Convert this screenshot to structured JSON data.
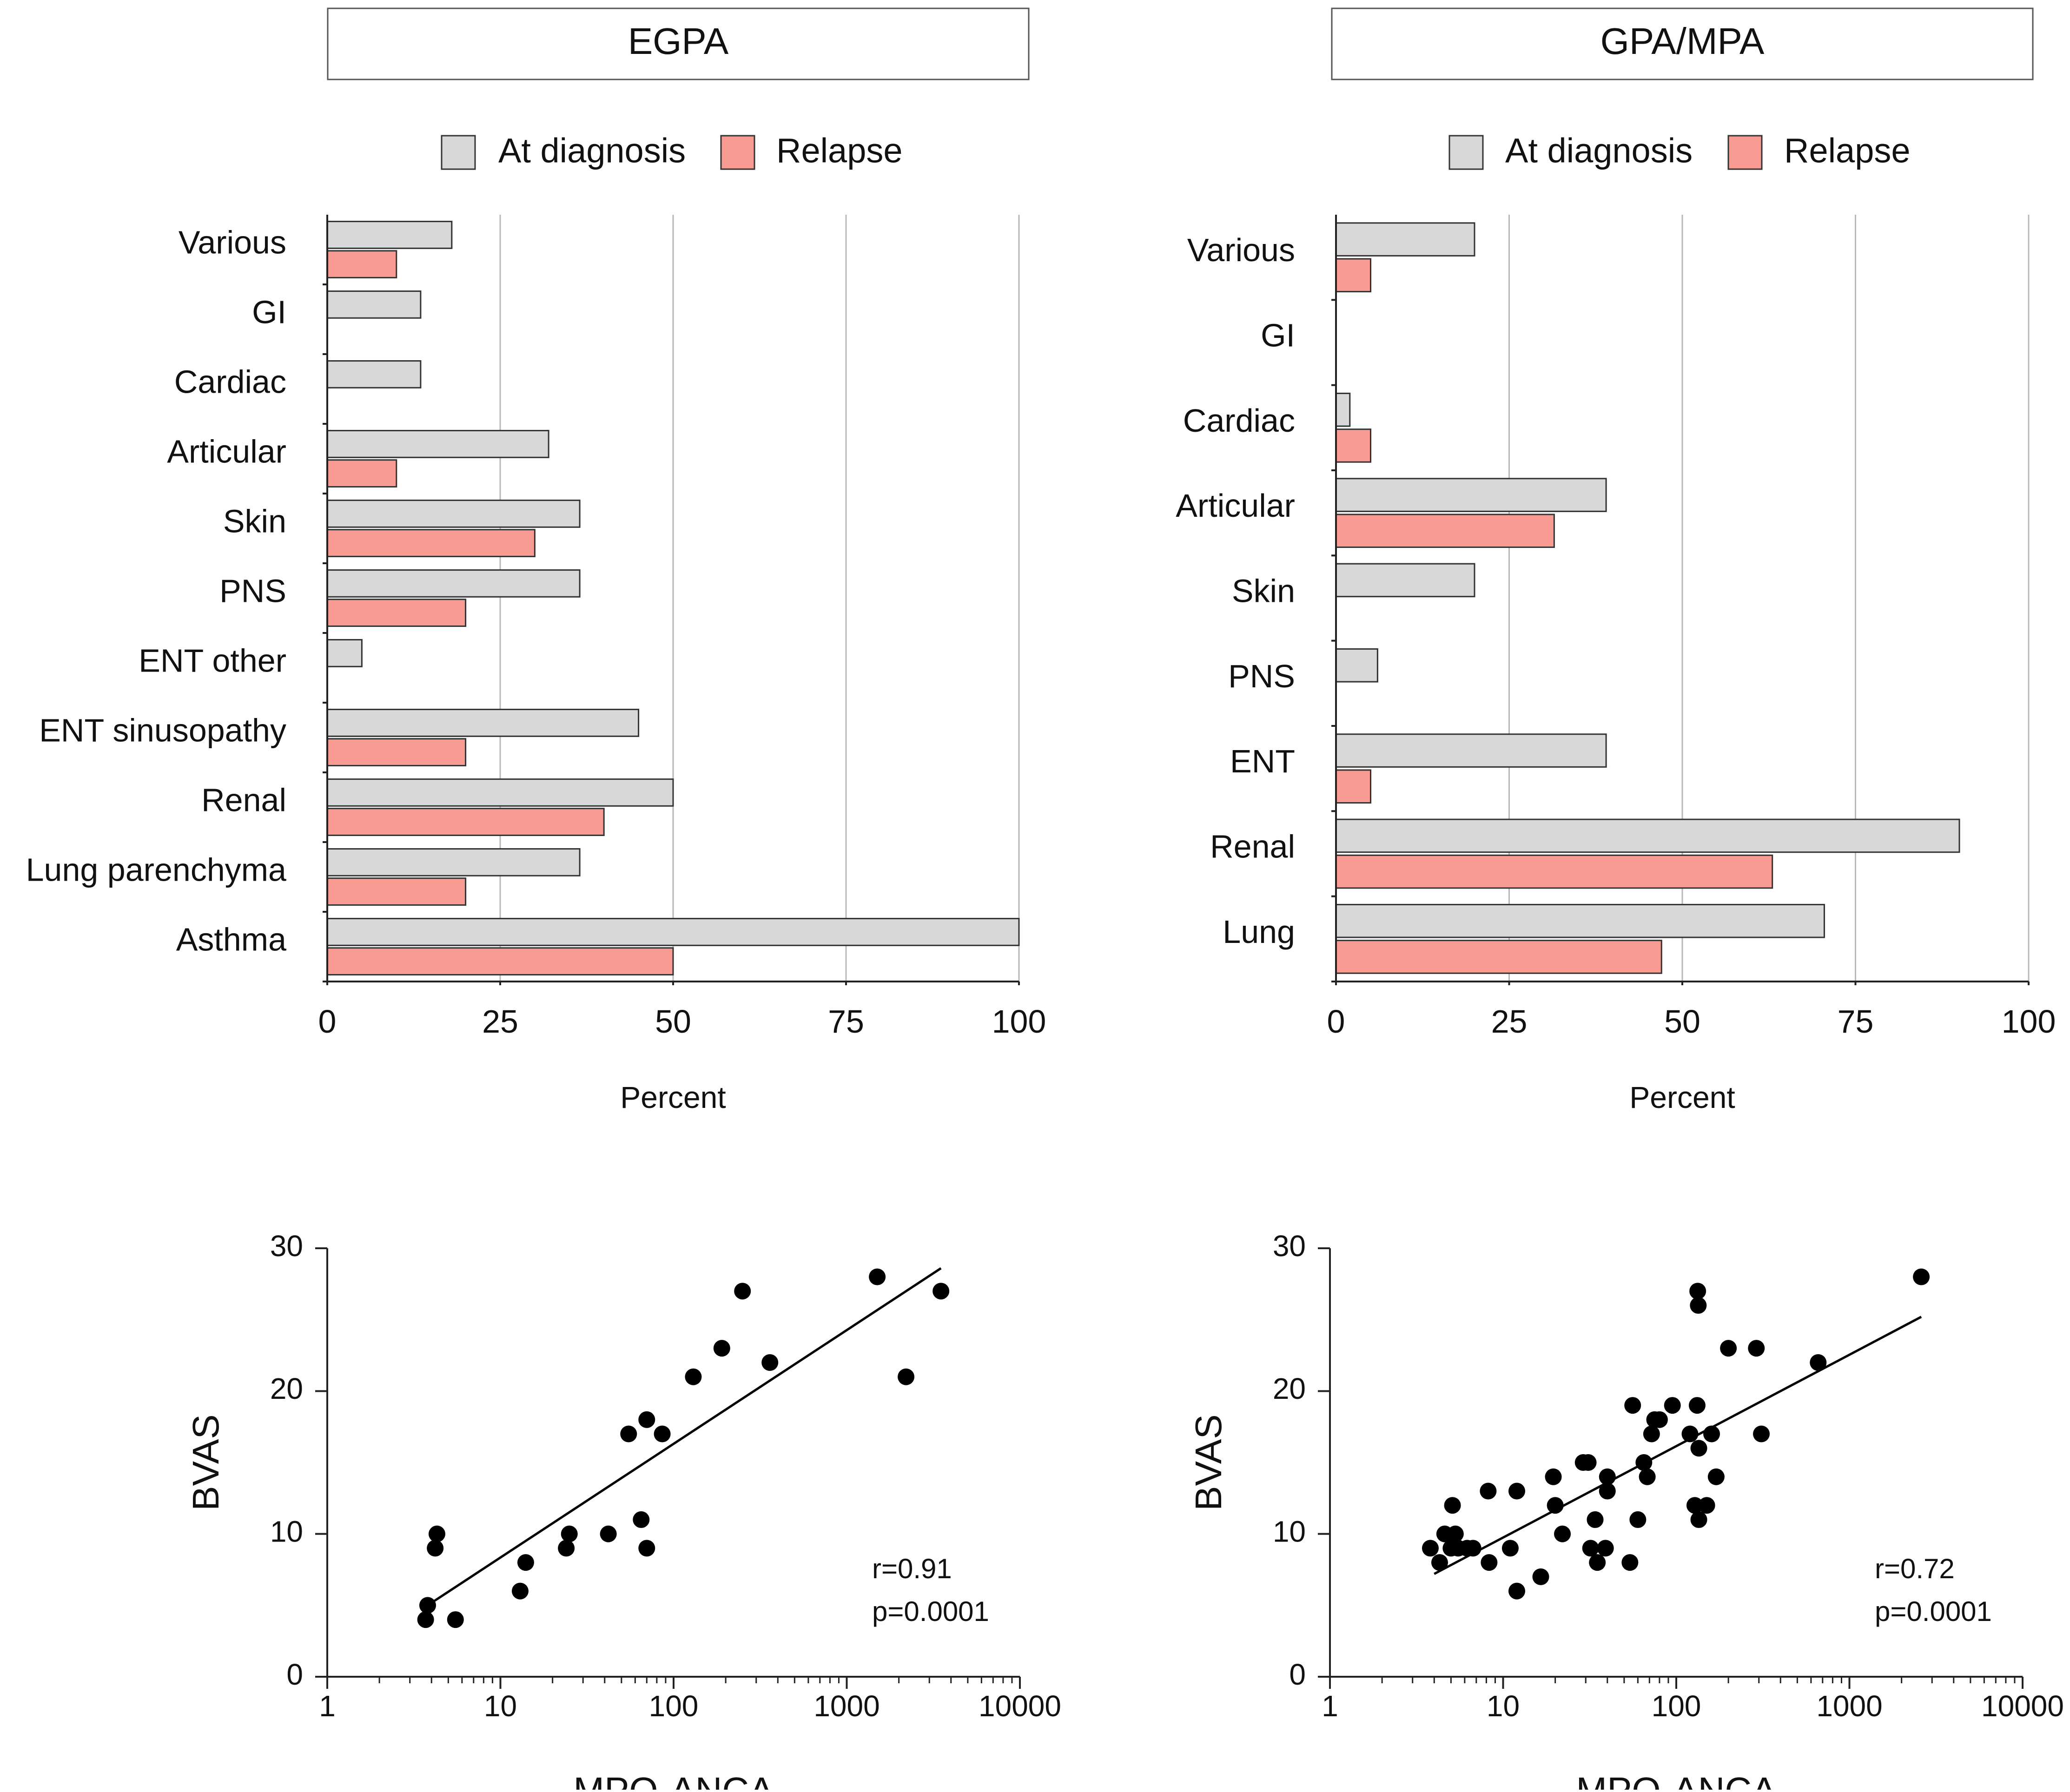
{
  "colors": {
    "at_diagnosis": "#d8d8d8",
    "relapse": "#f89b92",
    "grid": "#b8b8b8",
    "axis": "#222222",
    "point": "#000000"
  },
  "chart_data": [
    {
      "id": "egpa-bars",
      "type": "bar",
      "orientation": "horizontal",
      "title": "EGPA",
      "xlabel": "Percent",
      "ylabel": "",
      "xlim": [
        0,
        100
      ],
      "xticks": [
        "0",
        "25",
        "50",
        "75",
        "100"
      ],
      "grid": "vertical",
      "legend": "top",
      "categories": [
        "Various",
        "GI",
        "Cardiac",
        "Articular",
        "Skin",
        "PNS",
        "ENT other",
        "ENT sinusopathy",
        "Renal",
        "Lung parenchyma",
        "Asthma"
      ],
      "series": [
        {
          "name": "At diagnosis",
          "values": [
            18,
            13.5,
            13.5,
            32,
            36.5,
            36.5,
            5,
            45,
            50,
            36.5,
            100
          ]
        },
        {
          "name": "Relapse",
          "values": [
            10,
            0,
            0,
            10,
            30,
            20,
            0,
            20,
            40,
            20,
            50
          ]
        }
      ]
    },
    {
      "id": "gpa-bars",
      "type": "bar",
      "orientation": "horizontal",
      "title": "GPA/MPA",
      "xlabel": "Percent",
      "ylabel": "",
      "xlim": [
        0,
        100
      ],
      "xticks": [
        "0",
        "25",
        "50",
        "75",
        "100"
      ],
      "grid": "vertical",
      "legend": "top",
      "categories": [
        "Various",
        "GI",
        "Cardiac",
        "Articular",
        "Skin",
        "PNS",
        "ENT",
        "Renal",
        "Lung"
      ],
      "series": [
        {
          "name": "At diagnosis",
          "values": [
            20,
            0,
            2,
            39,
            20,
            6,
            39,
            90,
            70.5
          ]
        },
        {
          "name": "Relapse",
          "values": [
            5,
            0,
            5,
            31.5,
            0,
            0,
            5,
            63,
            47
          ]
        }
      ]
    },
    {
      "id": "egpa-scatter",
      "type": "scatter",
      "title": "",
      "xlabel": "MPO-ANCA",
      "ylabel": "BVAS",
      "xscale": "log",
      "xlim": [
        1,
        10000
      ],
      "ylim": [
        0,
        30
      ],
      "xticks": [
        "1",
        "10",
        "100",
        "1000",
        "10000"
      ],
      "yticks": [
        "0",
        "10",
        "20",
        "30"
      ],
      "annotation": [
        "r=0.91",
        "p=0.0001"
      ],
      "fit_line": {
        "x": [
          3.8,
          3500
        ],
        "y": [
          5,
          28.6
        ]
      },
      "points": [
        {
          "x": 3.7,
          "y": 4
        },
        {
          "x": 3.8,
          "y": 5
        },
        {
          "x": 4.2,
          "y": 9
        },
        {
          "x": 4.3,
          "y": 10
        },
        {
          "x": 5.5,
          "y": 4
        },
        {
          "x": 13,
          "y": 6
        },
        {
          "x": 14,
          "y": 8
        },
        {
          "x": 24,
          "y": 9
        },
        {
          "x": 25,
          "y": 10
        },
        {
          "x": 42,
          "y": 10
        },
        {
          "x": 55,
          "y": 17
        },
        {
          "x": 65,
          "y": 11
        },
        {
          "x": 70,
          "y": 18
        },
        {
          "x": 70,
          "y": 9
        },
        {
          "x": 86,
          "y": 17
        },
        {
          "x": 130,
          "y": 21
        },
        {
          "x": 190,
          "y": 23
        },
        {
          "x": 250,
          "y": 27
        },
        {
          "x": 360,
          "y": 22
        },
        {
          "x": 1500,
          "y": 28
        },
        {
          "x": 2200,
          "y": 21
        },
        {
          "x": 3500,
          "y": 27
        }
      ]
    },
    {
      "id": "gpa-scatter",
      "type": "scatter",
      "title": "",
      "xlabel": "MPO-ANCA",
      "ylabel": "BVAS",
      "xscale": "log",
      "xlim": [
        1,
        10000
      ],
      "ylim": [
        0,
        30
      ],
      "xticks": [
        "1",
        "10",
        "100",
        "1000",
        "10000"
      ],
      "yticks": [
        "0",
        "10",
        "20",
        "30"
      ],
      "annotation": [
        "r=0.72",
        "p=0.0001"
      ],
      "fit_line": {
        "x": [
          4,
          2600
        ],
        "y": [
          7.2,
          25.2
        ]
      },
      "points": [
        {
          "x": 3.8,
          "y": 9
        },
        {
          "x": 4.3,
          "y": 8
        },
        {
          "x": 4.6,
          "y": 10
        },
        {
          "x": 5,
          "y": 9
        },
        {
          "x": 5.1,
          "y": 12
        },
        {
          "x": 5.3,
          "y": 10
        },
        {
          "x": 5.5,
          "y": 9
        },
        {
          "x": 6.2,
          "y": 9
        },
        {
          "x": 6.7,
          "y": 9
        },
        {
          "x": 8.2,
          "y": 13
        },
        {
          "x": 8.3,
          "y": 8
        },
        {
          "x": 11,
          "y": 9
        },
        {
          "x": 12,
          "y": 13
        },
        {
          "x": 12,
          "y": 6
        },
        {
          "x": 16.5,
          "y": 7
        },
        {
          "x": 19.5,
          "y": 14
        },
        {
          "x": 20,
          "y": 12
        },
        {
          "x": 22,
          "y": 10
        },
        {
          "x": 29,
          "y": 15
        },
        {
          "x": 31,
          "y": 15
        },
        {
          "x": 32,
          "y": 9
        },
        {
          "x": 34,
          "y": 11
        },
        {
          "x": 35,
          "y": 8
        },
        {
          "x": 39,
          "y": 9
        },
        {
          "x": 40,
          "y": 14
        },
        {
          "x": 40,
          "y": 13
        },
        {
          "x": 54,
          "y": 8
        },
        {
          "x": 56,
          "y": 19
        },
        {
          "x": 60,
          "y": 11
        },
        {
          "x": 65,
          "y": 15
        },
        {
          "x": 68,
          "y": 14
        },
        {
          "x": 72,
          "y": 17
        },
        {
          "x": 75,
          "y": 18
        },
        {
          "x": 80,
          "y": 18
        },
        {
          "x": 95,
          "y": 19
        },
        {
          "x": 120,
          "y": 17
        },
        {
          "x": 128,
          "y": 12
        },
        {
          "x": 132,
          "y": 19
        },
        {
          "x": 133,
          "y": 27
        },
        {
          "x": 134,
          "y": 26
        },
        {
          "x": 135,
          "y": 16
        },
        {
          "x": 135,
          "y": 11
        },
        {
          "x": 150,
          "y": 12
        },
        {
          "x": 160,
          "y": 17
        },
        {
          "x": 170,
          "y": 14
        },
        {
          "x": 200,
          "y": 23
        },
        {
          "x": 290,
          "y": 23
        },
        {
          "x": 310,
          "y": 17
        },
        {
          "x": 660,
          "y": 22
        },
        {
          "x": 2600,
          "y": 28
        }
      ]
    }
  ]
}
